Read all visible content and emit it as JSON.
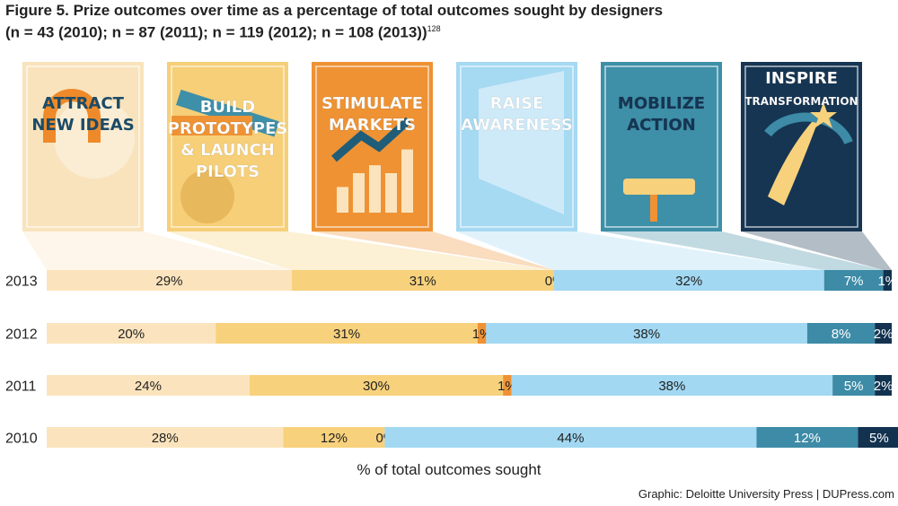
{
  "figure": {
    "title_line1": "Figure 5. Prize outcomes over time as a percentage of total outcomes sought by designers",
    "title_line2": "(n = 43 (2010); n = 87 (2011); n = 119 (2012); n = 108 (2013))",
    "title_sup": "128",
    "source": "Graphic: Deloitte University Press  |  DUPress.com"
  },
  "posters": [
    {
      "lines": [
        "ATTRACT",
        "NEW IDEAS"
      ],
      "bg": "#f9e3bd",
      "icon": "magnet-lightbulb-icon"
    },
    {
      "lines": [
        "BUILD",
        "PROTOTYPES",
        "& LAUNCH",
        "PILOTS"
      ],
      "bg": "#f6cf78",
      "icon": "wrench-gear-icon"
    },
    {
      "lines": [
        "STIMULATE",
        "MARKETS"
      ],
      "bg": "#ee9234",
      "icon": "bar-growth-icon"
    },
    {
      "lines": [
        "RAISE",
        "AWARENESS"
      ],
      "bg": "#a6d9f2",
      "icon": "megaphone-icon"
    },
    {
      "lines": [
        "MOBILIZE",
        "ACTION"
      ],
      "bg": "#3e8fa8",
      "icon": "paint-roller-icon"
    },
    {
      "lines": [
        "INSPIRE",
        "TRANSFORMATION"
      ],
      "bg": "#163552",
      "icon": "shooting-star-icon"
    }
  ],
  "chart_data": {
    "type": "bar",
    "orientation": "horizontal-stacked-100",
    "xlabel": "% of total outcomes sought",
    "categories": [
      "2013",
      "2012",
      "2011",
      "2010"
    ],
    "segment_colors": [
      "#fbe4bd",
      "#f7d17c",
      "#ee9234",
      "#a2d8f2",
      "#3d8ba6",
      "#12324f"
    ],
    "series": [
      {
        "name": "Attract new ideas",
        "values": [
          29,
          20,
          24,
          28
        ],
        "labels": [
          "29%",
          "20%",
          "24%",
          "28%"
        ]
      },
      {
        "name": "Build prototypes & launch pilots",
        "values": [
          31,
          31,
          30,
          12
        ],
        "labels": [
          "31%",
          "31%",
          "30%",
          "12%"
        ]
      },
      {
        "name": "Stimulate markets",
        "values": [
          0,
          1,
          1,
          0
        ],
        "labels": [
          "0%",
          "1%",
          "1%",
          "0%"
        ]
      },
      {
        "name": "Raise awareness",
        "values": [
          32,
          38,
          38,
          44
        ],
        "labels": [
          "32%",
          "38%",
          "38%",
          "44%"
        ]
      },
      {
        "name": "Mobilize action",
        "values": [
          7,
          8,
          5,
          12
        ],
        "labels": [
          "7%",
          "8%",
          "5%",
          "12%"
        ]
      },
      {
        "name": "Inspire transformation",
        "values": [
          1,
          2,
          2,
          5
        ],
        "labels": [
          "1%",
          "2%",
          "2%",
          "5%"
        ]
      }
    ]
  }
}
